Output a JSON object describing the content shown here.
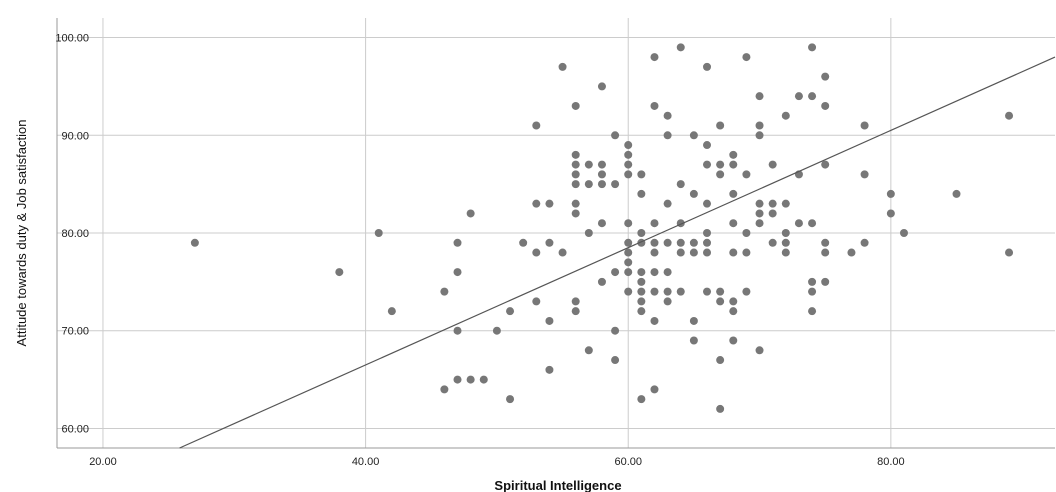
{
  "chart_data": {
    "type": "scatter",
    "xlabel": "Spiritual Intelligence",
    "ylabel": "Attitude towards duty & Job satisfaction",
    "xlim": [
      16.5,
      92.5
    ],
    "ylim": [
      58,
      102
    ],
    "x_ticks": [
      20,
      40,
      60,
      80
    ],
    "x_tick_labels": [
      "20.00",
      "40.00",
      "60.00",
      "80.00"
    ],
    "y_ticks": [
      60,
      70,
      80,
      90,
      100
    ],
    "y_tick_labels": [
      "60.00",
      "70.00",
      "80.00",
      "90.00",
      "100.00"
    ],
    "grid": true,
    "fit_line": {
      "intercept": 42.5,
      "slope": 0.6
    },
    "colors": {
      "points": "#777777",
      "line": "#555555",
      "grid": "#cccccc",
      "axis": "#999999"
    },
    "points": [
      [
        27,
        79
      ],
      [
        38,
        76
      ],
      [
        41,
        80
      ],
      [
        42,
        72
      ],
      [
        46,
        74
      ],
      [
        46,
        64
      ],
      [
        47,
        79
      ],
      [
        47,
        76
      ],
      [
        47,
        70
      ],
      [
        47,
        65
      ],
      [
        48,
        82
      ],
      [
        48,
        65
      ],
      [
        49,
        65
      ],
      [
        50,
        70
      ],
      [
        51,
        72
      ],
      [
        51,
        63
      ],
      [
        52,
        79
      ],
      [
        53,
        91
      ],
      [
        53,
        83
      ],
      [
        53,
        78
      ],
      [
        53,
        73
      ],
      [
        54,
        83
      ],
      [
        54,
        79
      ],
      [
        54,
        71
      ],
      [
        54,
        66
      ],
      [
        55,
        97
      ],
      [
        55,
        78
      ],
      [
        56,
        93
      ],
      [
        56,
        88
      ],
      [
        56,
        87
      ],
      [
        56,
        86
      ],
      [
        56,
        85
      ],
      [
        56,
        83
      ],
      [
        56,
        82
      ],
      [
        56,
        73
      ],
      [
        56,
        72
      ],
      [
        57,
        87
      ],
      [
        57,
        85
      ],
      [
        57,
        80
      ],
      [
        57,
        68
      ],
      [
        58,
        95
      ],
      [
        58,
        87
      ],
      [
        58,
        86
      ],
      [
        58,
        85
      ],
      [
        58,
        81
      ],
      [
        58,
        75
      ],
      [
        59,
        90
      ],
      [
        59,
        85
      ],
      [
        59,
        76
      ],
      [
        59,
        70
      ],
      [
        59,
        67
      ],
      [
        60,
        89
      ],
      [
        60,
        88
      ],
      [
        60,
        87
      ],
      [
        60,
        86
      ],
      [
        60,
        81
      ],
      [
        60,
        79
      ],
      [
        60,
        78
      ],
      [
        60,
        77
      ],
      [
        60,
        76
      ],
      [
        60,
        74
      ],
      [
        61,
        86
      ],
      [
        61,
        84
      ],
      [
        61,
        80
      ],
      [
        61,
        79
      ],
      [
        61,
        76
      ],
      [
        61,
        75
      ],
      [
        61,
        74
      ],
      [
        61,
        73
      ],
      [
        61,
        72
      ],
      [
        61,
        63
      ],
      [
        62,
        98
      ],
      [
        62,
        93
      ],
      [
        62,
        81
      ],
      [
        62,
        79
      ],
      [
        62,
        78
      ],
      [
        62,
        76
      ],
      [
        62,
        74
      ],
      [
        62,
        71
      ],
      [
        62,
        64
      ],
      [
        63,
        92
      ],
      [
        63,
        90
      ],
      [
        63,
        83
      ],
      [
        63,
        79
      ],
      [
        63,
        76
      ],
      [
        63,
        74
      ],
      [
        63,
        73
      ],
      [
        64,
        99
      ],
      [
        64,
        85
      ],
      [
        64,
        81
      ],
      [
        64,
        79
      ],
      [
        64,
        78
      ],
      [
        64,
        74
      ],
      [
        65,
        90
      ],
      [
        65,
        84
      ],
      [
        65,
        79
      ],
      [
        65,
        78
      ],
      [
        65,
        71
      ],
      [
        65,
        69
      ],
      [
        66,
        97
      ],
      [
        66,
        89
      ],
      [
        66,
        87
      ],
      [
        66,
        83
      ],
      [
        66,
        80
      ],
      [
        66,
        79
      ],
      [
        66,
        78
      ],
      [
        66,
        74
      ],
      [
        67,
        91
      ],
      [
        67,
        87
      ],
      [
        67,
        86
      ],
      [
        67,
        74
      ],
      [
        67,
        73
      ],
      [
        67,
        67
      ],
      [
        67,
        62
      ],
      [
        68,
        88
      ],
      [
        68,
        87
      ],
      [
        68,
        84
      ],
      [
        68,
        81
      ],
      [
        68,
        78
      ],
      [
        68,
        73
      ],
      [
        68,
        72
      ],
      [
        68,
        69
      ],
      [
        69,
        98
      ],
      [
        69,
        86
      ],
      [
        69,
        80
      ],
      [
        69,
        78
      ],
      [
        69,
        74
      ],
      [
        70,
        94
      ],
      [
        70,
        91
      ],
      [
        70,
        90
      ],
      [
        70,
        83
      ],
      [
        70,
        82
      ],
      [
        70,
        81
      ],
      [
        70,
        68
      ],
      [
        71,
        87
      ],
      [
        71,
        83
      ],
      [
        71,
        82
      ],
      [
        71,
        79
      ],
      [
        72,
        92
      ],
      [
        72,
        83
      ],
      [
        72,
        80
      ],
      [
        72,
        79
      ],
      [
        72,
        78
      ],
      [
        73,
        94
      ],
      [
        73,
        86
      ],
      [
        73,
        81
      ],
      [
        74,
        99
      ],
      [
        74,
        94
      ],
      [
        74,
        81
      ],
      [
        74,
        75
      ],
      [
        74,
        74
      ],
      [
        74,
        72
      ],
      [
        75,
        96
      ],
      [
        75,
        93
      ],
      [
        75,
        87
      ],
      [
        75,
        79
      ],
      [
        75,
        78
      ],
      [
        75,
        75
      ],
      [
        77,
        78
      ],
      [
        78,
        91
      ],
      [
        78,
        86
      ],
      [
        78,
        79
      ],
      [
        80,
        84
      ],
      [
        80,
        82
      ],
      [
        81,
        80
      ],
      [
        85,
        84
      ],
      [
        89,
        92
      ],
      [
        89,
        78
      ]
    ]
  }
}
